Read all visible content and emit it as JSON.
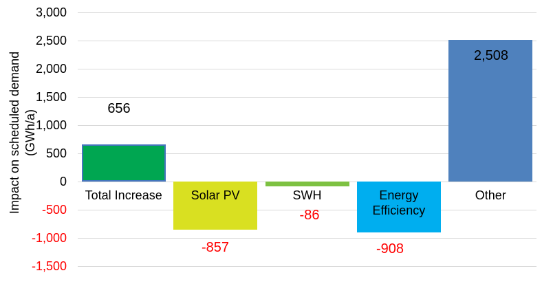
{
  "chart_data": {
    "type": "bar",
    "title": "",
    "xlabel": "",
    "ylabel_lines": [
      "Impact on scheduled demand",
      "(GWh/a)"
    ],
    "ylabel": "Impact on scheduled demand (GWh/a)",
    "ylim": [
      -1500,
      3000
    ],
    "ytick_step": 500,
    "grid": true,
    "legend": "none",
    "categories": [
      "Total Increase",
      "Solar PV",
      "SWH",
      "Energy Efficiency",
      "Other"
    ],
    "values": [
      656,
      -857,
      -86,
      -908,
      2508
    ],
    "value_labels": [
      "656",
      "-857",
      "-86",
      "-908",
      "2,508"
    ],
    "ytick_values": [
      3000,
      2500,
      2000,
      1500,
      1000,
      500,
      0,
      -500,
      -1000,
      -1500
    ],
    "ytick_labels": [
      "3,000",
      "2,500",
      "2,000",
      "1,500",
      "1,000",
      "500",
      "0",
      "-500",
      "-1,000",
      "-1,500"
    ],
    "bar_colors": [
      "#00A651",
      "#D9E021",
      "#7DC142",
      "#00AEEF",
      "#4F81BD"
    ],
    "bar_border_colors": [
      "#4575BE",
      null,
      null,
      null,
      null
    ],
    "colors": {
      "gridline": "#D9D9D9",
      "negative_text": "#FF0000",
      "positive_text": "#000000",
      "background": "#FFFFFF"
    }
  }
}
